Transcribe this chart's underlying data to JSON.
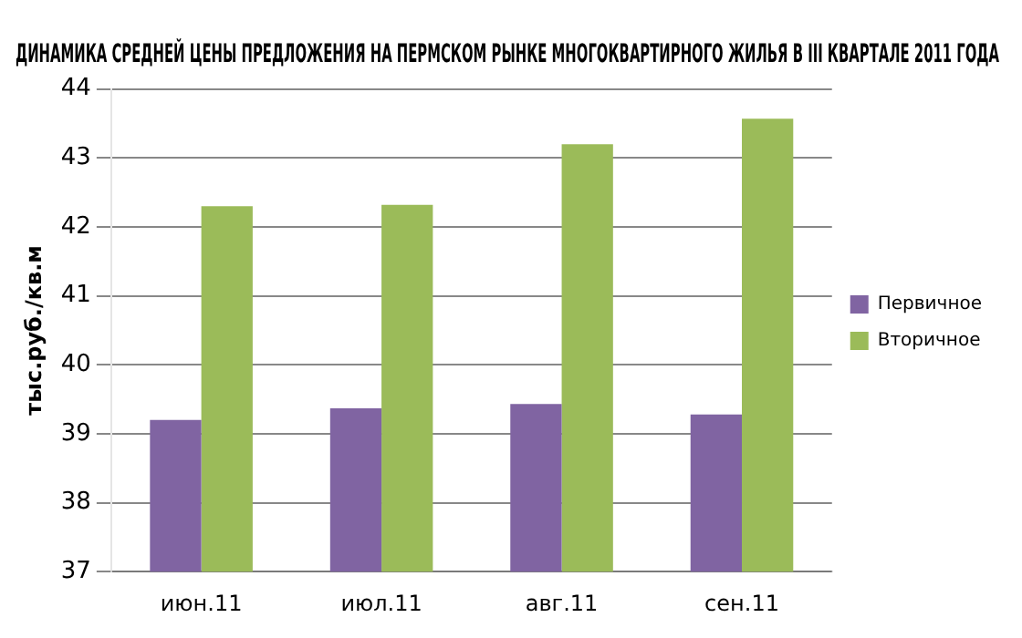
{
  "chart_data": {
    "type": "bar",
    "title": "ДИНАМИКА СРЕДНЕЙ ЦЕНЫ ПРЕДЛОЖЕНИЯ НА ПЕРМСКОМ РЫНКЕ МНОГОКВАРТИРНОГО ЖИЛЬЯ В III КВАРТАЛЕ 2011 ГОДА",
    "ylabel": "тыс.руб./кв.м",
    "categories": [
      "июн.11",
      "июл.11",
      "авг.11",
      "сен.11"
    ],
    "series": [
      {
        "name": "Первичное",
        "color": "#8064a2",
        "values": [
          39.2,
          39.37,
          39.43,
          39.28
        ]
      },
      {
        "name": "Вторичное",
        "color": "#9bbb59",
        "values": [
          42.3,
          42.32,
          43.2,
          43.57
        ]
      }
    ],
    "ylim": [
      37,
      44
    ],
    "yticks": [
      37,
      38,
      39,
      40,
      41,
      42,
      43,
      44
    ],
    "grid": "y",
    "legend": "right"
  }
}
